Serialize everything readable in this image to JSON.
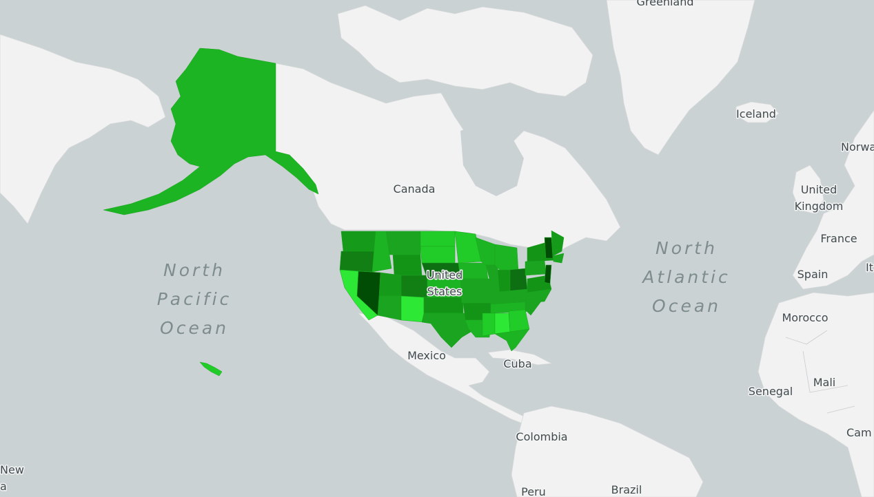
{
  "map": {
    "type": "choropleth",
    "region": "United States",
    "colors": {
      "water": "#cad2d3",
      "land": "#f2f2f2",
      "scale_light": "#2ee836",
      "scale_mid": "#1db423",
      "scale_dark": "#0e6e12",
      "scale_darkest": "#024d05"
    },
    "labels": {
      "greenland": "Greenland",
      "iceland": "Iceland",
      "norway": "Norwa",
      "uk_line1": "United",
      "uk_line2": "Kingdom",
      "france": "France",
      "spain": "Spain",
      "italy": "It",
      "morocco": "Morocco",
      "senegal": "Senegal",
      "mali": "Mali",
      "cameroon": "Cam",
      "canada": "Canada",
      "us_line1": "United",
      "us_line2": "States",
      "mexico": "Mexico",
      "cuba": "Cuba",
      "colombia": "Colombia",
      "peru": "Peru",
      "brazil": "Brazil",
      "nz_line1": "New",
      "nz_line2": "a"
    },
    "oceans": {
      "pacific": [
        "North",
        "Pacific",
        "Ocean"
      ],
      "atlantic": [
        "North",
        "Atlantic",
        "Ocean"
      ]
    }
  }
}
